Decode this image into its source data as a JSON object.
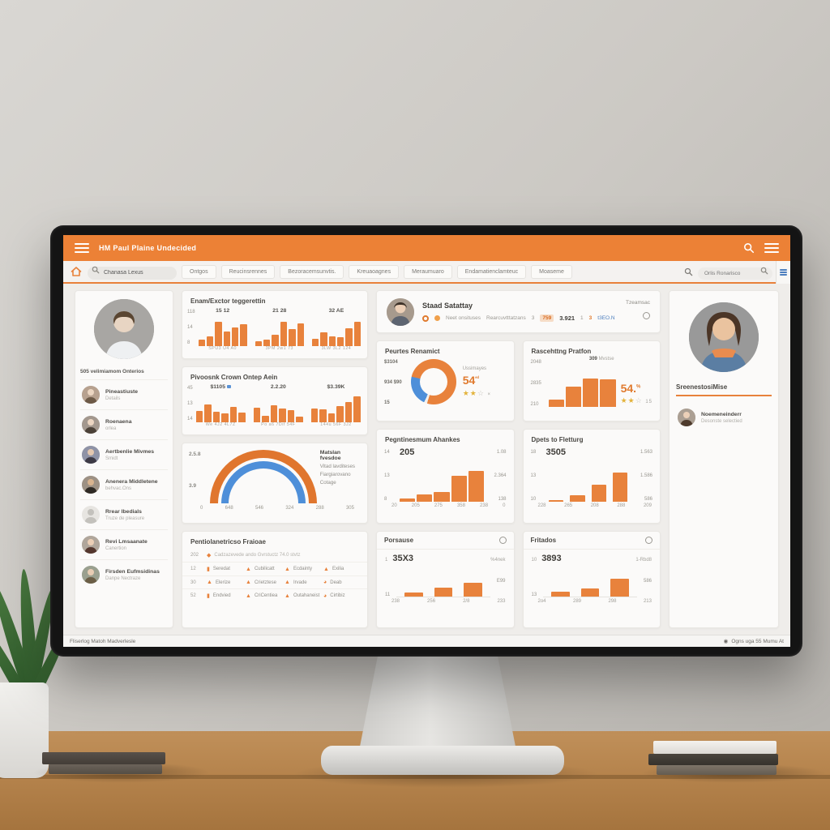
{
  "theme": {
    "accent_orange": "#EC8136",
    "bar_orange": "#E8823C",
    "blue": "#4E8FD9",
    "gold": "#E3B33C",
    "card_bg": "#FBFAF9",
    "content_bg": "#EFEDEA"
  },
  "topbar": {
    "title": "HM Paul Plaine Undecided"
  },
  "navbar": {
    "search_value": "Chanasa Lexus",
    "search2_value": "Orlis Ronarisco",
    "tabs": [
      "Ontgos",
      "Reucinsrennes",
      "Bezoracemsunvtis.",
      "Kreuaoagnes",
      "Meraumuaro",
      "Endamatienclamteuc",
      "Moaseme"
    ]
  },
  "sidebar": {
    "caption": "505 velimiamom Onterios",
    "people": [
      {
        "name": "Pineastiuste",
        "sub": "Details"
      },
      {
        "name": "Roenaena",
        "sub": "orlea"
      },
      {
        "name": "Aertbenlie Mivmes",
        "sub": "Smidt"
      },
      {
        "name": "Anenera Middletene",
        "sub": "behvac.Ons"
      },
      {
        "name": "Rrear Ibedials",
        "sub": "Truze de pleasure"
      },
      {
        "name": "Revi Lmsaanate",
        "sub": "Canertion"
      },
      {
        "name": "Firsden Eufmsidinas",
        "sub": "Danpe Nectraze"
      }
    ]
  },
  "cards": {
    "middle1": {
      "title": "Enam/Exctor teggerettin",
      "yaxis": [
        "118",
        "14",
        "8"
      ],
      "groups": [
        {
          "value": "15 12",
          "ticks": "SPU3  U4  A0",
          "bars": [
            22,
            32,
            78,
            48,
            60,
            72
          ]
        },
        {
          "value": "21 28",
          "ticks": "3PM  2w1  73",
          "bars": [
            16,
            20,
            38,
            78,
            55,
            75
          ]
        },
        {
          "value": "32 AE",
          "ticks": "3LW  3L2  124",
          "bars": [
            25,
            45,
            32,
            28,
            58,
            80
          ]
        }
      ]
    },
    "middle2": {
      "title": "Pivoosnk Crown Ontep Aein",
      "yaxis": [
        "45",
        "13",
        "14"
      ],
      "groups": [
        {
          "value": "$1105",
          "ticks": "We  4J2  4L7Z",
          "bars": [
            38,
            58,
            34,
            30,
            50,
            32
          ]
        },
        {
          "value": "2.2.20",
          "ticks": "Po a6  7Dif  54F",
          "bars": [
            48,
            20,
            55,
            45,
            40,
            18
          ]
        },
        {
          "value": "$3.39K",
          "ticks": "144u  56F  3J2",
          "bars": [
            45,
            42,
            28,
            52,
            65,
            85
          ]
        }
      ]
    },
    "gauge": {
      "yaxis": [
        "2.5.8",
        "3.9"
      ],
      "legend_title": "Matslan fvesdoe",
      "legend": [
        "Vitad lavditeses",
        "Fiargiarovano",
        "Cotage"
      ],
      "xticks": [
        "0",
        "648",
        "546",
        "324",
        "288",
        "305"
      ]
    },
    "matrix": {
      "title": "Pentiolanetricso Fraioae",
      "header": {
        "num": "202",
        "text": "Cadzazevede ando  Gvrstuctz 74.0 stvtz"
      },
      "rows": [
        {
          "num": "12",
          "cells": [
            "Seredat",
            "Cubilicatt",
            "Ecdainty",
            "Exilia"
          ]
        },
        {
          "num": "30",
          "cells": [
            "Elerize",
            "Crietztese",
            "Irvade",
            "Deab"
          ]
        },
        {
          "num": "52",
          "cells": [
            "Endvied",
            "CriCentiea",
            "Outahaneist",
            "Cirtibiz"
          ]
        }
      ]
    },
    "donut": {
      "title": "Peurtes Renamict",
      "left": [
        "$3104",
        "934 $90",
        "15"
      ],
      "sub": "Ussimayes",
      "big": "54",
      "big_sup": "ᵉᵈ",
      "stars": "★★",
      "star_outline": "☆",
      "after_stars": "×",
      "slices": {
        "orange": 76,
        "blue": 22
      }
    },
    "rating": {
      "title": "Rascehttng Pratfon",
      "yaxis": [
        "2048",
        "2835",
        "210"
      ],
      "top_value": "309",
      "top_label": "Mvstse",
      "big": "54.",
      "big_sup": "%",
      "stars": "★★",
      "star_outline": "☆",
      "small": "15",
      "bars": [
        18,
        48,
        68,
        66
      ]
    },
    "pegnt": {
      "title": "Pegntinesmum Ahankes",
      "big": "205",
      "yaxis": [
        "14",
        "13",
        "8"
      ],
      "right": [
        "1.08",
        "2.364",
        "138"
      ],
      "xticks": [
        "20",
        "205",
        "275",
        "358",
        "238",
        "0"
      ],
      "bars": [
        8,
        18,
        24,
        62,
        74
      ]
    },
    "dpets": {
      "title": "Dpets to Fletturg",
      "big": "3505",
      "yaxis": [
        "18",
        "13",
        "10"
      ],
      "right": [
        "1.563",
        "1.586",
        "586"
      ],
      "xticks": [
        "228",
        "265",
        "208",
        "288",
        "209"
      ],
      "bars": [
        4,
        16,
        40,
        70
      ]
    },
    "porsause": {
      "title": "Porsause",
      "big": "35X3",
      "right_small": "%4nek",
      "right_val": "E99",
      "yaxis": [
        "1",
        "11"
      ],
      "xticks": [
        "238",
        "256",
        "2/8",
        "233"
      ],
      "bars": [
        14,
        30,
        46
      ]
    },
    "fritados": {
      "title": "Fritados",
      "big": "3893",
      "right_small": "1-Rbd8",
      "right_val": "586",
      "yaxis": [
        "10",
        "13"
      ],
      "xticks": [
        "2o4",
        "289",
        "298",
        "213"
      ],
      "bars": [
        16,
        26,
        60
      ]
    }
  },
  "profile_card": {
    "name": "Staad Satattay",
    "tag": "Tzeamsac",
    "label1": "Neet onsituses",
    "label2": "Rearcuvtttatzans",
    "stats": [
      "3",
      "759",
      "3.921",
      "1",
      "3",
      "t3EO.N"
    ]
  },
  "rightbar": {
    "heading": "SreenestosiMise",
    "person": {
      "name": "Noemeneinderr",
      "sub": "Desonste selectied"
    }
  },
  "statusbar": {
    "left": "Fliserlog Matoh Madverlesle",
    "right": "Ogns uga 55 Mumu At"
  }
}
